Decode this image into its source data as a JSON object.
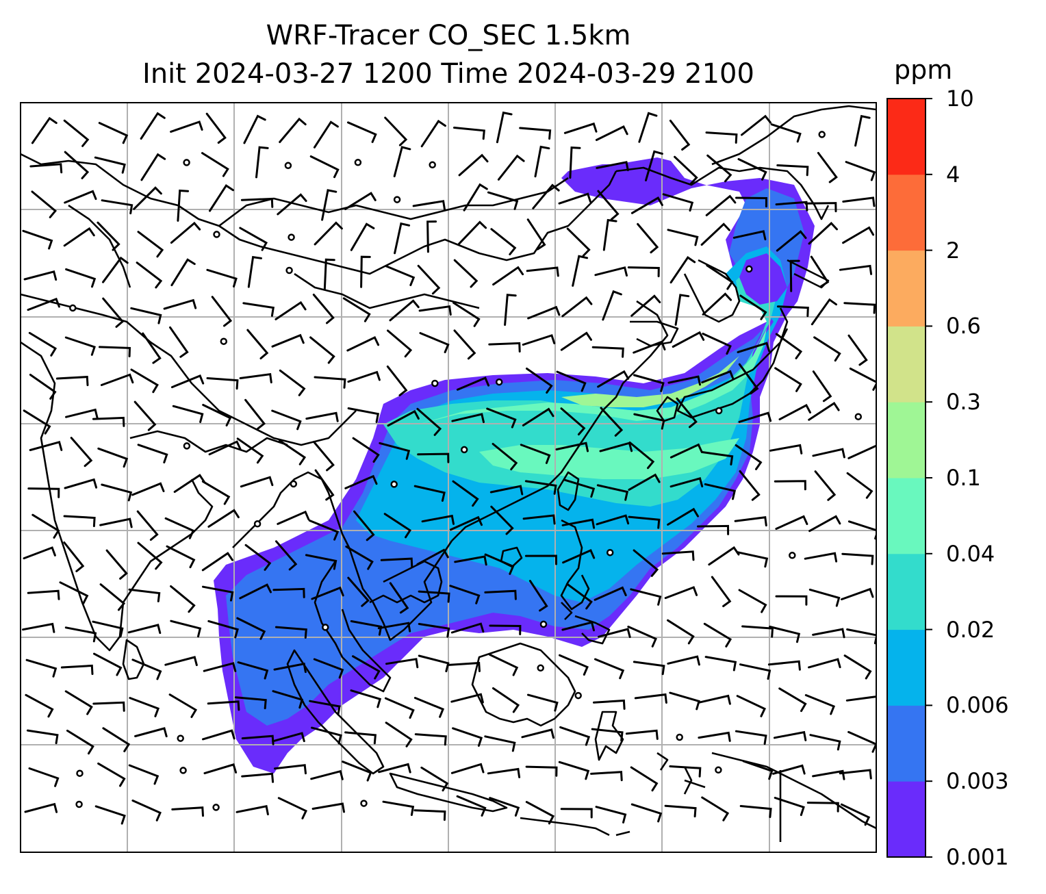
{
  "title": {
    "line1": "WRF-Tracer CO_SEC 1.5km",
    "line2": "Init 2024-03-27 1200 Time 2024-03-29 2100"
  },
  "colorbar": {
    "unit": "ppm",
    "levels": [
      "0.001",
      "0.003",
      "0.006",
      "0.02",
      "0.04",
      "0.1",
      "0.3",
      "0.6",
      "2",
      "4",
      "10"
    ],
    "colors": [
      "#6a2cfb",
      "#3575f2",
      "#05b3ec",
      "#33dccc",
      "#69f8be",
      "#9ff695",
      "#d1e38a",
      "#fcab5f",
      "#fd6c39",
      "#fc2a17"
    ]
  },
  "map": {
    "field": "CO tracer concentration (ppm) with wind barbs",
    "gridlines": true,
    "colors": {
      "land_outline": "#000000",
      "grid": "#b0b0b0",
      "barb": "#000000"
    }
  }
}
